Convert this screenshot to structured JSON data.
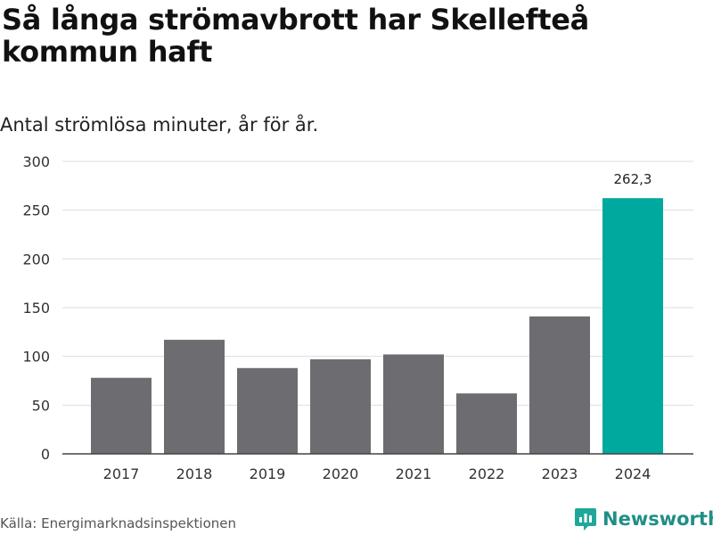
{
  "title": "Så långa strömavbrott har Skellefteå kommun haft",
  "subtitle": "Antal strömlösa minuter, år för år.",
  "source": "Källa: Energimarknadsinspektionen",
  "brand": {
    "name": "Newsworthy",
    "icon": "newsworthy-logo-icon",
    "color": "#1fa89a"
  },
  "colors": {
    "bar_default": "#6d6c71",
    "bar_highlight": "#00a99d",
    "grid": "#dddddd",
    "axis": "#444444"
  },
  "chart_data": {
    "type": "bar",
    "title": "Så långa strömavbrott har Skellefteå kommun haft",
    "subtitle": "Antal strömlösa minuter, år för år.",
    "xlabel": "",
    "ylabel": "",
    "categories": [
      "2017",
      "2018",
      "2019",
      "2020",
      "2021",
      "2022",
      "2023",
      "2024"
    ],
    "values": [
      78,
      117,
      88,
      97,
      102,
      62,
      141,
      262.3
    ],
    "highlight_index": 7,
    "data_labels": [
      {
        "index": 7,
        "text": "262,3"
      }
    ],
    "ylim": [
      0,
      300
    ],
    "yticks": [
      0,
      50,
      100,
      150,
      200,
      250,
      300
    ],
    "ytick_labels": [
      "0",
      "50",
      "100",
      "150",
      "200",
      "250",
      "300"
    ],
    "grid": true
  }
}
